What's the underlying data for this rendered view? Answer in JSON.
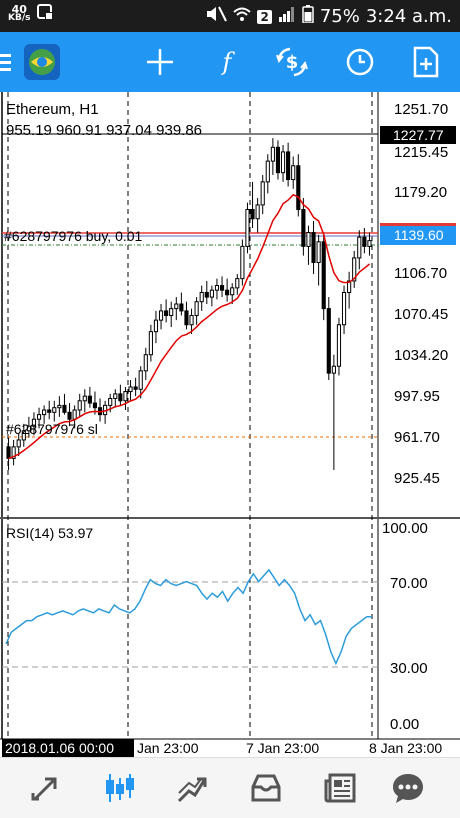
{
  "status_bar": {
    "speed_value": "40",
    "speed_unit": "KB/s",
    "battery": "75%",
    "time": "3:24 a.m.",
    "sim_badge": "2"
  },
  "toolbar": {
    "menu_icon": "hamburger-icon",
    "crosshair_icon": "crosshair-icon",
    "indicators_icon": "function-icon",
    "symbols_icon": "dollar-arrows-icon",
    "timeframe_icon": "clock-icon",
    "new_order_icon": "new-document-icon"
  },
  "chart": {
    "symbol_label": "Ethereum, H1",
    "ohlc_label": "955.19 960.91 937.04 939.86",
    "buy_label": "#628797976 buy, 0.01",
    "sl_label": "#628797976 sl",
    "price_ticks": [
      "1251.70",
      "1215.45",
      "1179.20",
      "1106.70",
      "1070.45",
      "1034.20",
      "997.95",
      "961.70",
      "925.45"
    ],
    "high_marker": "1227.77",
    "current_price": "1139.60",
    "rsi_label": "RSI(14) 53.97",
    "rsi_ticks": [
      "100.00",
      "70.00",
      "30.00",
      "0.00"
    ],
    "time_ticks": [
      "2018.01.06 00:00",
      "Jan 23:00",
      "7 Jan 23:00",
      "8 Jan 23:00"
    ]
  },
  "chart_data": {
    "type": "candlestick",
    "title": "Ethereum, H1",
    "ylim": [
      900,
      1268
    ],
    "ohlc": [
      {
        "o": 960,
        "h": 968,
        "l": 940,
        "c": 950
      },
      {
        "o": 950,
        "h": 966,
        "l": 944,
        "c": 960
      },
      {
        "o": 960,
        "h": 972,
        "l": 952,
        "c": 966
      },
      {
        "o": 966,
        "h": 980,
        "l": 960,
        "c": 974
      },
      {
        "o": 974,
        "h": 986,
        "l": 968,
        "c": 978
      },
      {
        "o": 978,
        "h": 990,
        "l": 970,
        "c": 984
      },
      {
        "o": 984,
        "h": 994,
        "l": 976,
        "c": 988
      },
      {
        "o": 988,
        "h": 996,
        "l": 980,
        "c": 992
      },
      {
        "o": 992,
        "h": 1000,
        "l": 984,
        "c": 990
      },
      {
        "o": 990,
        "h": 1000,
        "l": 982,
        "c": 994
      },
      {
        "o": 994,
        "h": 1004,
        "l": 986,
        "c": 996
      },
      {
        "o": 996,
        "h": 1006,
        "l": 988,
        "c": 990
      },
      {
        "o": 990,
        "h": 998,
        "l": 978,
        "c": 984
      },
      {
        "o": 984,
        "h": 996,
        "l": 976,
        "c": 992
      },
      {
        "o": 992,
        "h": 1006,
        "l": 986,
        "c": 1000
      },
      {
        "o": 1000,
        "h": 1010,
        "l": 990,
        "c": 1004
      },
      {
        "o": 1004,
        "h": 1012,
        "l": 994,
        "c": 998
      },
      {
        "o": 998,
        "h": 1008,
        "l": 988,
        "c": 994
      },
      {
        "o": 994,
        "h": 1002,
        "l": 982,
        "c": 988
      },
      {
        "o": 988,
        "h": 1000,
        "l": 980,
        "c": 996
      },
      {
        "o": 996,
        "h": 1006,
        "l": 990,
        "c": 1002
      },
      {
        "o": 1002,
        "h": 1010,
        "l": 994,
        "c": 1006
      },
      {
        "o": 1006,
        "h": 1014,
        "l": 996,
        "c": 1000
      },
      {
        "o": 1000,
        "h": 1012,
        "l": 992,
        "c": 1008
      },
      {
        "o": 1008,
        "h": 1018,
        "l": 1000,
        "c": 1012
      },
      {
        "o": 1012,
        "h": 1020,
        "l": 1004,
        "c": 1010
      },
      {
        "o": 1010,
        "h": 1030,
        "l": 1002,
        "c": 1026
      },
      {
        "o": 1026,
        "h": 1046,
        "l": 1018,
        "c": 1040
      },
      {
        "o": 1040,
        "h": 1066,
        "l": 1034,
        "c": 1060
      },
      {
        "o": 1060,
        "h": 1078,
        "l": 1050,
        "c": 1070
      },
      {
        "o": 1070,
        "h": 1084,
        "l": 1062,
        "c": 1078
      },
      {
        "o": 1078,
        "h": 1088,
        "l": 1068,
        "c": 1074
      },
      {
        "o": 1074,
        "h": 1086,
        "l": 1064,
        "c": 1080
      },
      {
        "o": 1080,
        "h": 1090,
        "l": 1070,
        "c": 1084
      },
      {
        "o": 1084,
        "h": 1094,
        "l": 1074,
        "c": 1078
      },
      {
        "o": 1078,
        "h": 1086,
        "l": 1062,
        "c": 1066
      },
      {
        "o": 1066,
        "h": 1080,
        "l": 1058,
        "c": 1074
      },
      {
        "o": 1074,
        "h": 1090,
        "l": 1066,
        "c": 1086
      },
      {
        "o": 1086,
        "h": 1100,
        "l": 1078,
        "c": 1094
      },
      {
        "o": 1094,
        "h": 1104,
        "l": 1084,
        "c": 1090
      },
      {
        "o": 1090,
        "h": 1100,
        "l": 1082,
        "c": 1096
      },
      {
        "o": 1096,
        "h": 1106,
        "l": 1088,
        "c": 1100
      },
      {
        "o": 1100,
        "h": 1108,
        "l": 1090,
        "c": 1096
      },
      {
        "o": 1096,
        "h": 1106,
        "l": 1086,
        "c": 1092
      },
      {
        "o": 1092,
        "h": 1102,
        "l": 1084,
        "c": 1098
      },
      {
        "o": 1098,
        "h": 1110,
        "l": 1092,
        "c": 1106
      },
      {
        "o": 1106,
        "h": 1140,
        "l": 1100,
        "c": 1134
      },
      {
        "o": 1134,
        "h": 1172,
        "l": 1128,
        "c": 1166
      },
      {
        "o": 1166,
        "h": 1190,
        "l": 1150,
        "c": 1158
      },
      {
        "o": 1158,
        "h": 1176,
        "l": 1146,
        "c": 1170
      },
      {
        "o": 1170,
        "h": 1196,
        "l": 1162,
        "c": 1190
      },
      {
        "o": 1190,
        "h": 1214,
        "l": 1180,
        "c": 1208
      },
      {
        "o": 1208,
        "h": 1228,
        "l": 1196,
        "c": 1220
      },
      {
        "o": 1220,
        "h": 1226,
        "l": 1192,
        "c": 1198
      },
      {
        "o": 1198,
        "h": 1222,
        "l": 1190,
        "c": 1216
      },
      {
        "o": 1216,
        "h": 1224,
        "l": 1186,
        "c": 1192
      },
      {
        "o": 1192,
        "h": 1212,
        "l": 1184,
        "c": 1204
      },
      {
        "o": 1204,
        "h": 1214,
        "l": 1160,
        "c": 1166
      },
      {
        "o": 1166,
        "h": 1176,
        "l": 1126,
        "c": 1134
      },
      {
        "o": 1134,
        "h": 1152,
        "l": 1118,
        "c": 1146
      },
      {
        "o": 1146,
        "h": 1156,
        "l": 1110,
        "c": 1120
      },
      {
        "o": 1120,
        "h": 1144,
        "l": 1100,
        "c": 1138
      },
      {
        "o": 1138,
        "h": 1146,
        "l": 1070,
        "c": 1080
      },
      {
        "o": 1080,
        "h": 1090,
        "l": 1018,
        "c": 1024
      },
      {
        "o": 1024,
        "h": 1040,
        "l": 940,
        "c": 1030
      },
      {
        "o": 1030,
        "h": 1072,
        "l": 1022,
        "c": 1066
      },
      {
        "o": 1066,
        "h": 1100,
        "l": 1058,
        "c": 1094
      },
      {
        "o": 1094,
        "h": 1112,
        "l": 1080,
        "c": 1104
      },
      {
        "o": 1104,
        "h": 1130,
        "l": 1098,
        "c": 1124
      },
      {
        "o": 1124,
        "h": 1148,
        "l": 1114,
        "c": 1142
      },
      {
        "o": 1142,
        "h": 1150,
        "l": 1128,
        "c": 1134
      },
      {
        "o": 1134,
        "h": 1146,
        "l": 1126,
        "c": 1139
      }
    ],
    "ma_color": "#e00000",
    "candle_color": "#000000",
    "rsi": {
      "ylim": [
        0,
        100
      ],
      "values": [
        40,
        46,
        48,
        50,
        52,
        52,
        54,
        55,
        56,
        55,
        56,
        57,
        56,
        55,
        57,
        58,
        57,
        56,
        58,
        57,
        56,
        60,
        58,
        57,
        56,
        58,
        62,
        68,
        73,
        71,
        70,
        73,
        71,
        70,
        71,
        72,
        71,
        70,
        66,
        63,
        66,
        64,
        67,
        62,
        66,
        69,
        66,
        72,
        76,
        72,
        75,
        78,
        74,
        70,
        73,
        70,
        66,
        58,
        52,
        55,
        50,
        52,
        45,
        36,
        30,
        36,
        44,
        48,
        50,
        52,
        54,
        53.97
      ],
      "color": "#2d9cdb"
    }
  },
  "bottom_nav": {
    "items": [
      {
        "name": "quotes-icon"
      },
      {
        "name": "chart-icon",
        "active": true
      },
      {
        "name": "trade-icon"
      },
      {
        "name": "history-icon"
      },
      {
        "name": "news-icon"
      },
      {
        "name": "messages-icon"
      }
    ],
    "accent": "#2196f3",
    "inactive": "#555555"
  }
}
